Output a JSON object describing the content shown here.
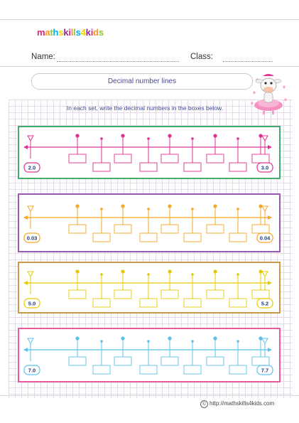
{
  "logo": {
    "text": "mathskills4kids",
    "colors": [
      "#e8217a",
      "#f7941d",
      "#8cc63f",
      "#00aeef",
      "#f0d000",
      "#92278f"
    ]
  },
  "header": {
    "name_label": "Name:",
    "class_label": "Class:"
  },
  "worksheet": {
    "title": "Decimal number lines",
    "instruction": "In each set, write the decimal numbers in the boxes below.",
    "sets": [
      {
        "start": "2.0",
        "end": "3.0",
        "color": "#e0308f",
        "frame_color": "#3fae6a"
      },
      {
        "start": "0.03",
        "end": "0.04",
        "color": "#f5a623",
        "frame_color": "#9b59b6"
      },
      {
        "start": "5.0",
        "end": "5.2",
        "color": "#e6c800",
        "frame_color": "#c89a45"
      },
      {
        "start": "7.0",
        "end": "7.7",
        "color": "#5bc0eb",
        "frame_color": "#ea5a9a"
      }
    ]
  },
  "illustration": {
    "icon": "cow-ballerina-icon"
  },
  "footer": {
    "copyright_icon": "©",
    "url": "http://mathskills4kids.com"
  }
}
